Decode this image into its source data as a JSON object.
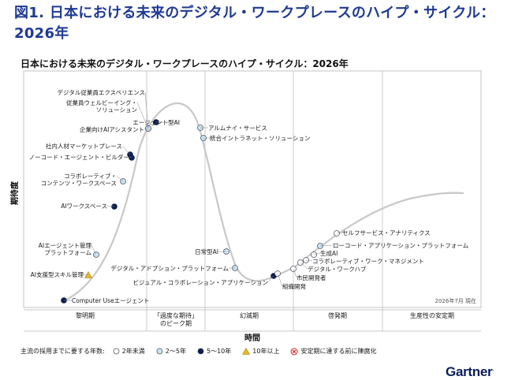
{
  "figure_title": "図1. 日本における未来のデジタル・ワークプレースのハイプ・サイクル：2026年",
  "chart_data": {
    "type": "line",
    "title": "日本における未来のデジタル・ワークプレースのハイプ・サイクル：2026年",
    "ylabel": "期待度",
    "xlabel": "時間",
    "as_of": "2026年7月 現在",
    "phases": [
      "黎明期",
      "「過度な期待」のピーク期",
      "幻滅期",
      "啓発期",
      "生産性の安定期"
    ],
    "points": [
      {
        "label": "デジタル従業員エクスペリエンス",
        "cat": "2to5"
      },
      {
        "label": "従業員ウェルビーイング・ソリューション",
        "cat": "2to5"
      },
      {
        "label": "エージェント型AI",
        "cat": "5to10"
      },
      {
        "label": "企業向けAIアシスタント",
        "cat": "2to5"
      },
      {
        "label": "アルムナイ・サービス",
        "cat": "2to5"
      },
      {
        "label": "統合イントラネット・ソリューション",
        "cat": "2to5"
      },
      {
        "label": "社内人材マーケットプレース",
        "cat": "5to10"
      },
      {
        "label": "ノーコード・エージェント・ビルダー",
        "cat": "5to10"
      },
      {
        "label": "コラボレーティブ・コンテンツ・ワークスペース",
        "cat": "2to5"
      },
      {
        "label": "AIワークスペース",
        "cat": "5to10"
      },
      {
        "label": "AIエージェント管理プラットフォーム",
        "cat": "2to5"
      },
      {
        "label": "AI支援型スキル管理",
        "cat": "10plus"
      },
      {
        "label": "Computer Useエージェント",
        "cat": "5to10"
      },
      {
        "label": "日常型AI",
        "cat": "2to5"
      },
      {
        "label": "デジタル・アドプション・プラットフォーム",
        "cat": "2to5"
      },
      {
        "label": "ビジュアル・コラボレーション・アプリケーション",
        "cat": "5to10"
      },
      {
        "label": "組織開発",
        "cat": "lt2"
      },
      {
        "label": "市民開発者",
        "cat": "lt2"
      },
      {
        "label": "デジタル・ワークハブ",
        "cat": "lt2"
      },
      {
        "label": "コラボレーティブ・ワーク・マネジメント",
        "cat": "lt2"
      },
      {
        "label": "生成AI",
        "cat": "lt2"
      },
      {
        "label": "ローコード・アプリケーション・プラットフォーム",
        "cat": "2to5"
      },
      {
        "label": "セルフサービス・アナリティクス",
        "cat": "lt2"
      }
    ],
    "legend": {
      "title": "主流の採用までに要する年数:",
      "items": [
        {
          "key": "lt2",
          "label": "2年未満"
        },
        {
          "key": "2to5",
          "label": "2〜5年"
        },
        {
          "key": "5to10",
          "label": "5〜10年"
        },
        {
          "key": "10plus",
          "label": "10年以上"
        },
        {
          "key": "obsolete",
          "label": "安定期に達する前に陳腐化"
        }
      ]
    }
  },
  "colors": {
    "title": "#1f3a93",
    "dark": "#0f1f4d",
    "light": "#c9e5f2",
    "tri": "#e8b81f",
    "curve": "#c8c8c8",
    "obsolete": "#d42020"
  },
  "brand": {
    "name": "Gartner"
  }
}
